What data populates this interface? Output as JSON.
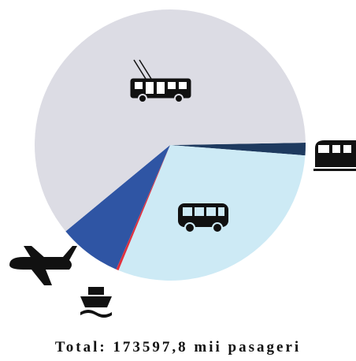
{
  "chart_data": {
    "type": "pie",
    "categories": [
      null,
      null,
      null,
      null,
      null
    ],
    "values": [
      1.5,
      30,
      0.3,
      7.5,
      60.7
    ],
    "colors": [
      "#1e3a5f",
      "#cdeaf5",
      "#e0303e",
      "#2f55a4",
      "#dcdce4"
    ],
    "total": "Total: 173597,8 mii pasageri"
  }
}
